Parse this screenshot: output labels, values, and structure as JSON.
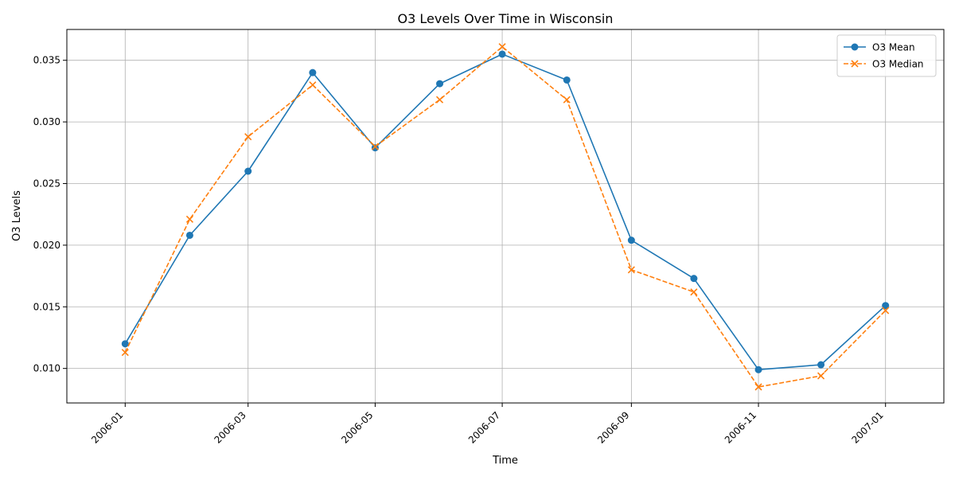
{
  "chart_data": {
    "type": "line",
    "title": "O3 Levels Over Time in Wisconsin",
    "xlabel": "Time",
    "ylabel": "O3 Levels",
    "x": [
      "2006-01-01",
      "2006-02-01",
      "2006-03-01",
      "2006-04-01",
      "2006-05-01",
      "2006-06-01",
      "2006-07-01",
      "2006-08-01",
      "2006-09-01",
      "2006-10-01",
      "2006-11-01",
      "2006-12-01",
      "2007-01-01"
    ],
    "xlim": [
      "2005-12-04",
      "2007-01-29"
    ],
    "ylim": [
      0.0072,
      0.0375
    ],
    "xticks": [
      "2006-01-01",
      "2006-03-01",
      "2006-05-01",
      "2006-07-01",
      "2006-09-01",
      "2006-11-01",
      "2007-01-01"
    ],
    "xtick_labels": [
      "2006-01",
      "2006-03",
      "2006-05",
      "2006-07",
      "2006-09",
      "2006-11",
      "2007-01"
    ],
    "yticks": [
      0.01,
      0.015,
      0.02,
      0.025,
      0.03,
      0.035
    ],
    "ytick_labels": [
      "0.010",
      "0.015",
      "0.020",
      "0.025",
      "0.030",
      "0.035"
    ],
    "grid": true,
    "legend_position": "top-right",
    "series": [
      {
        "name": "O3 Mean",
        "color": "#1f77b4",
        "marker": "circle",
        "line_style": "solid",
        "values": [
          0.012,
          0.0208,
          0.026,
          0.034,
          0.0279,
          0.0331,
          0.0355,
          0.0334,
          0.0204,
          0.0173,
          0.0099,
          0.0103,
          0.0151
        ]
      },
      {
        "name": "O3 Median",
        "color": "#ff7f0e",
        "marker": "x",
        "line_style": "dashed",
        "values": [
          0.0113,
          0.0221,
          0.0288,
          0.033,
          0.028,
          0.0318,
          0.0361,
          0.0318,
          0.018,
          0.0162,
          0.0085,
          0.0094,
          0.0147
        ]
      }
    ]
  }
}
